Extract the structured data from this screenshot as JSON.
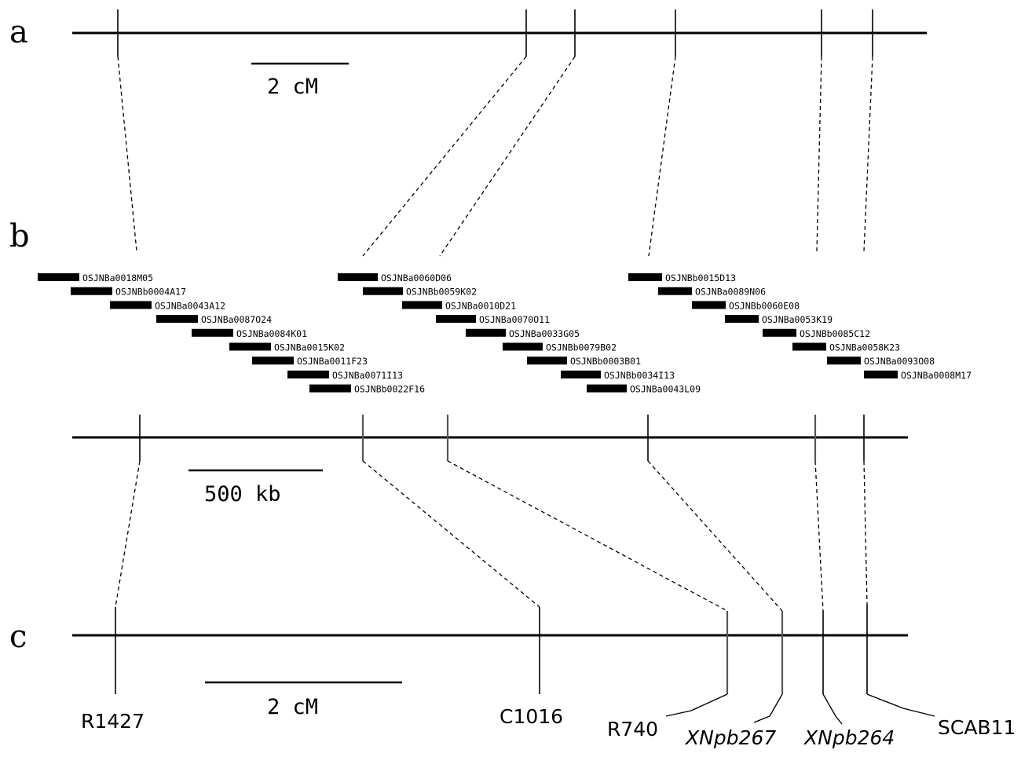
{
  "panels": {
    "a": "a",
    "b": "b",
    "c": "c"
  },
  "scale_bars": {
    "a": "2 cM",
    "b": "500 kb",
    "c": "2 cM"
  },
  "contigs": [
    {
      "clones": [
        "OSJNBa0018M05",
        "OSJNBb0004A17",
        "OSJNBa0043A12",
        "OSJNBa0087O24",
        "OSJNBa0084K01",
        "OSJNBa0015K02",
        "OSJNBa0011F23",
        "OSJNBa0071I13",
        "OSJNBb0022F16"
      ]
    },
    {
      "clones": [
        "OSJNBa0060D06",
        "OSJNBb0059K02",
        "OSJNBa0010D21",
        "OSJNBa0070O11",
        "OSJNBa0033G05",
        "OSJNBb0079B02",
        "OSJNBb0003B01",
        "OSJNBb0034I13",
        "OSJNBa0043L09"
      ]
    },
    {
      "clones": [
        "OSJNBb0015D13",
        "OSJNBa0089N06",
        "OSJNBb0060E08",
        "OSJNBa0053K19",
        "OSJNBb0085C12",
        "OSJNBa0058K23",
        "OSJNBa0093O08",
        "OSJNBa0008M17"
      ]
    }
  ],
  "markers": {
    "R1427": "R1427",
    "C1016": "C1016",
    "R740": "R740",
    "XNpb267": "XNpb267",
    "XNpb264": "XNpb264",
    "SCAB11": "SCAB11"
  }
}
